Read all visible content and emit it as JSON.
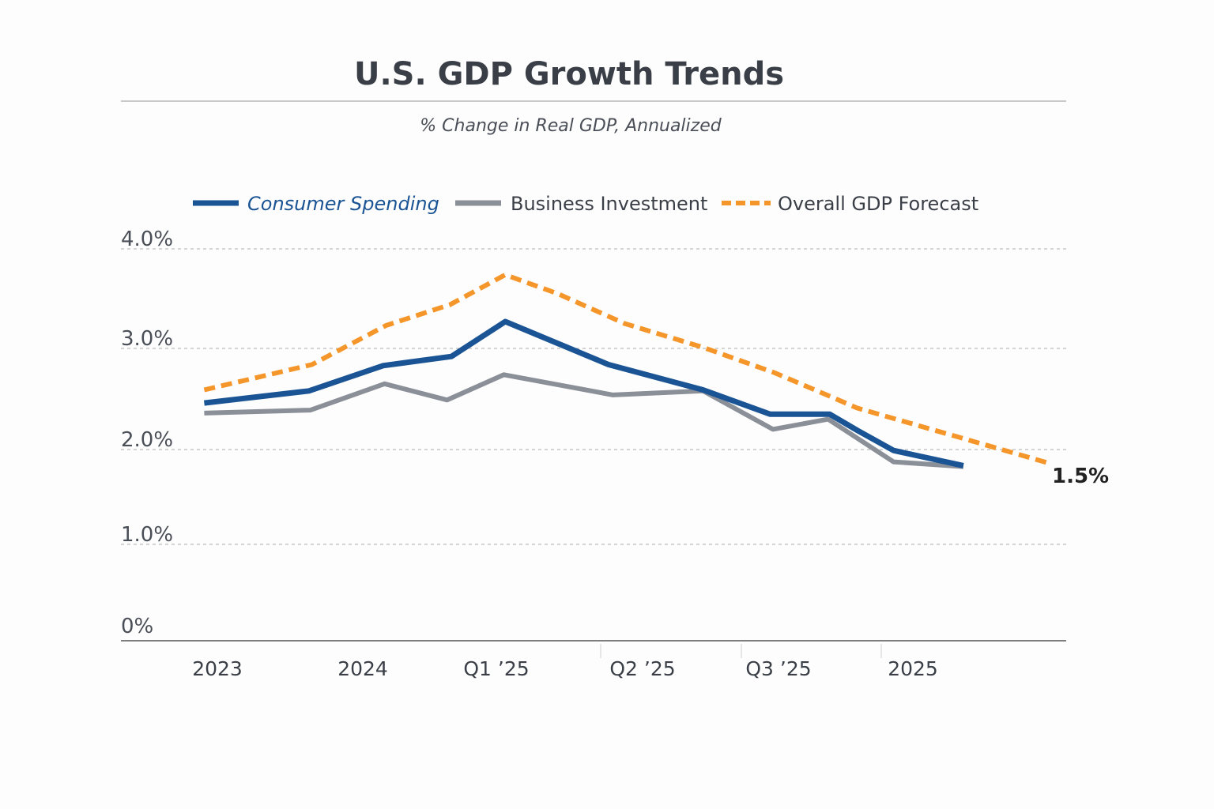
{
  "chart_data": {
    "type": "line",
    "title": "U.S. GDP Growth Trends",
    "subtitle": "% Change in Real GDP, Annualized",
    "xlabel": "",
    "ylabel": "",
    "categories": [
      "2023",
      "2024",
      "Q1 ’25",
      "Q2 ’25",
      "Q3 ’25",
      "2025"
    ],
    "y_ticks": [
      {
        "value": 4.0,
        "label": "4.0%"
      },
      {
        "value": 3.0,
        "label": "3.0%"
      },
      {
        "value": 2.0,
        "label": "2.0%"
      },
      {
        "value": 1.0,
        "label": "1.0%"
      },
      {
        "value": 0,
        "label": "0%"
      }
    ],
    "ylim": [
      0,
      4.0
    ],
    "grid": true,
    "legend_position": "top",
    "end_label": "1.5%",
    "series": [
      {
        "name": "Consumer Spending",
        "color": "#1a5494",
        "style": "solid",
        "x": [
          -0.09,
          0.63,
          1.14,
          1.61,
          1.98,
          2.69,
          3.34,
          3.8,
          4.21,
          4.4,
          4.65,
          5.13
        ],
        "y": [
          2.46,
          2.58,
          2.83,
          2.92,
          3.27,
          2.84,
          2.59,
          2.35,
          2.35,
          2.19,
          1.99,
          1.83
        ]
      },
      {
        "name": "Business Investment",
        "color": "#8a8f98",
        "style": "solid",
        "x": [
          -0.09,
          0.64,
          1.15,
          1.58,
          1.97,
          2.72,
          3.34,
          3.82,
          4.2,
          4.65,
          5.13
        ],
        "y": [
          2.36,
          2.39,
          2.65,
          2.49,
          2.74,
          2.54,
          2.58,
          2.2,
          2.3,
          1.87,
          1.82
        ]
      },
      {
        "name": "Overall GDP Forecast",
        "color": "#f5962a",
        "style": "dashed",
        "x": [
          -0.09,
          0.65,
          1.16,
          1.6,
          1.98,
          2.34,
          2.8,
          3.34,
          3.83,
          4.19,
          4.4,
          5.08,
          5.71
        ],
        "y": [
          2.59,
          2.84,
          3.23,
          3.44,
          3.74,
          3.55,
          3.25,
          3.01,
          2.76,
          2.54,
          2.41,
          2.13,
          1.86
        ]
      }
    ]
  }
}
